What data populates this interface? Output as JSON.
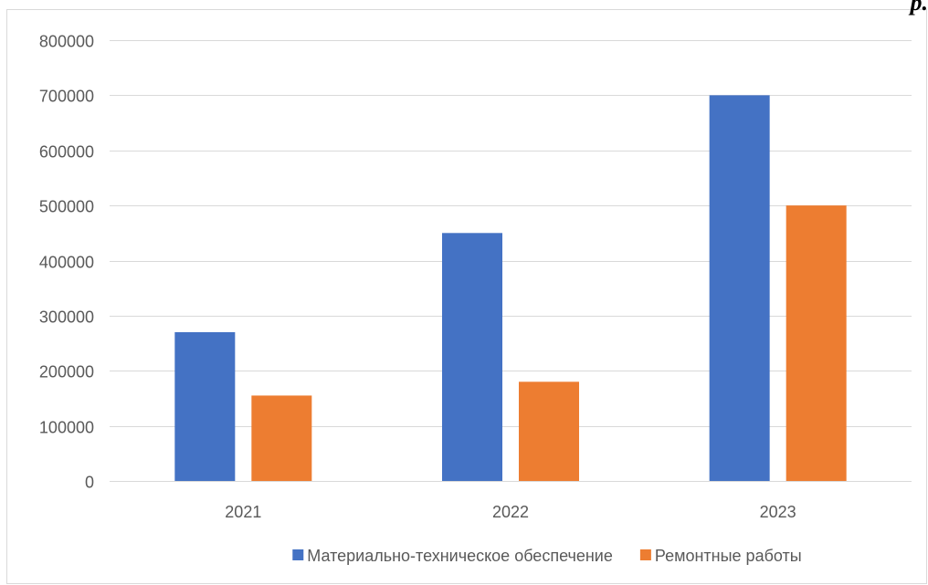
{
  "corner_text": "р.",
  "chart_data": {
    "type": "bar",
    "title": "",
    "xlabel": "",
    "ylabel": "",
    "categories": [
      "2021",
      "2022",
      "2023"
    ],
    "series": [
      {
        "name": "Материально-техническое обеспечение",
        "color": "#4472c4",
        "values": [
          270000,
          450000,
          700000
        ]
      },
      {
        "name": "Ремонтные работы",
        "color": "#ed7d31",
        "values": [
          155000,
          180000,
          500000
        ]
      }
    ],
    "ylim": [
      0,
      800000
    ],
    "y_ticks": [
      0,
      100000,
      200000,
      300000,
      400000,
      500000,
      600000,
      700000,
      800000
    ],
    "y_tick_labels": [
      "0",
      "100000",
      "200000",
      "300000",
      "400000",
      "500000",
      "600000",
      "700000",
      "800000"
    ],
    "grid": true,
    "gridline_color": "#d9d9d9",
    "legend_position": "bottom"
  }
}
